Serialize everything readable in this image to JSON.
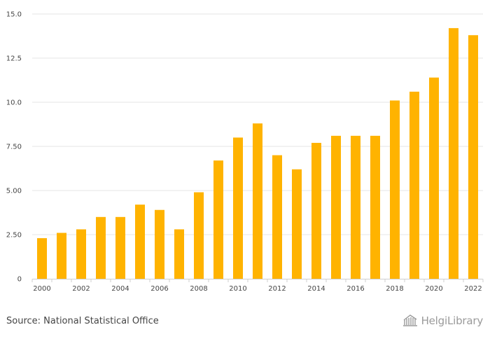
{
  "chart_data": {
    "type": "bar",
    "categories": [
      "2000",
      "2001",
      "2002",
      "2003",
      "2004",
      "2005",
      "2006",
      "2007",
      "2008",
      "2009",
      "2010",
      "2011",
      "2012",
      "2013",
      "2014",
      "2015",
      "2016",
      "2017",
      "2018",
      "2019",
      "2020",
      "2021",
      "2022"
    ],
    "values": [
      2.3,
      2.6,
      2.8,
      3.5,
      3.5,
      4.2,
      3.9,
      2.8,
      4.9,
      6.7,
      8.0,
      8.8,
      7.0,
      6.2,
      7.7,
      8.1,
      8.1,
      8.1,
      10.1,
      10.6,
      11.4,
      14.2,
      13.8
    ],
    "x_tick_labels": [
      "2000",
      "2002",
      "2004",
      "2006",
      "2008",
      "2010",
      "2012",
      "2014",
      "2016",
      "2018",
      "2020",
      "2022"
    ],
    "y_ticks": [
      0,
      2.5,
      5,
      7.5,
      10,
      12.5,
      15
    ],
    "y_tick_labels": [
      "0",
      "2.50",
      "5.00",
      "7.50",
      "10.0",
      "12.5",
      "15.0"
    ],
    "ylim": [
      0,
      15
    ],
    "grid": true,
    "bar_color": "#FFB300",
    "title": "",
    "xlabel": "",
    "ylabel": ""
  },
  "footer": {
    "source": "Source: National Statistical Office",
    "brand": "HelgiLibrary",
    "brand_icon": "library-building-icon"
  }
}
